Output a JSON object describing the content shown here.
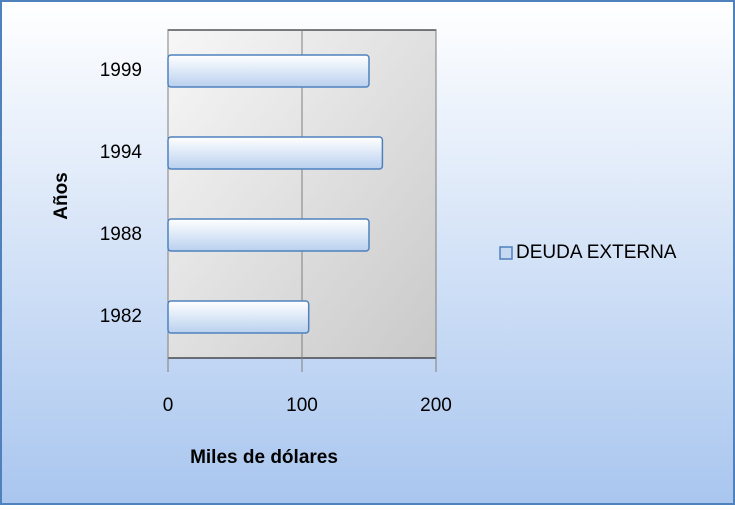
{
  "chart_data": {
    "type": "bar",
    "orientation": "horizontal",
    "categories": [
      "1982",
      "1988",
      "1994",
      "1999"
    ],
    "series": [
      {
        "name": "DEUDA EXTERNA",
        "color": "#c6d9f1",
        "values": [
          105,
          150,
          160,
          150
        ]
      }
    ],
    "xlabel": "Miles de dólares",
    "ylabel": "Años",
    "xlim": [
      0,
      200
    ],
    "xticks": [
      0,
      100,
      200
    ],
    "grid": true,
    "legend": "right"
  }
}
